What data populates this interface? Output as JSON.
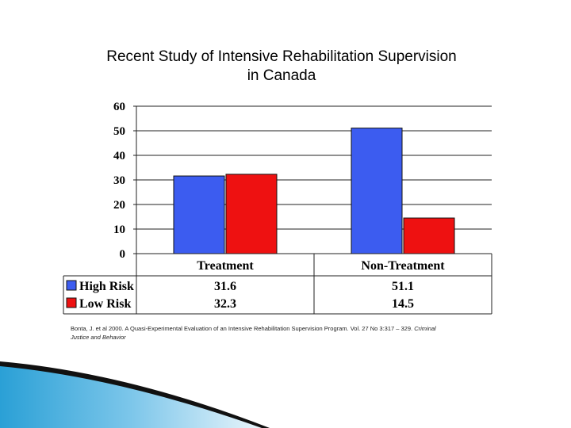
{
  "title_line1": "Recent Study of Intensive Rehabilitation Supervision",
  "title_line2": "in Canada",
  "citation_main": "Bonta, J. et al 2000. A Quasi-Experimental Evaluation of an Intensive Rehabilitation Supervision Program. Vol. 27 No 3:317 – 329.",
  "citation_journal_a": "Criminal",
  "citation_journal_b": "Justice and Behavior",
  "chart_data": {
    "type": "bar",
    "title": "Recent Study of Intensive Rehabilitation Supervision in Canada",
    "categories": [
      "Treatment",
      "Non-Treatment"
    ],
    "series": [
      {
        "name": "High Risk",
        "values": [
          31.6,
          51.1
        ],
        "color": "#3c5cf0"
      },
      {
        "name": "Low Risk",
        "values": [
          32.3,
          14.5
        ],
        "color": "#ee1111"
      }
    ],
    "ylim": [
      0,
      60
    ],
    "yticks": [
      "0",
      "10",
      "20",
      "30",
      "40",
      "50",
      "60"
    ],
    "table_values": [
      [
        "31.6",
        "51.1"
      ],
      [
        "32.3",
        "14.5"
      ]
    ],
    "grid": true,
    "xlabel": "",
    "ylabel": ""
  }
}
